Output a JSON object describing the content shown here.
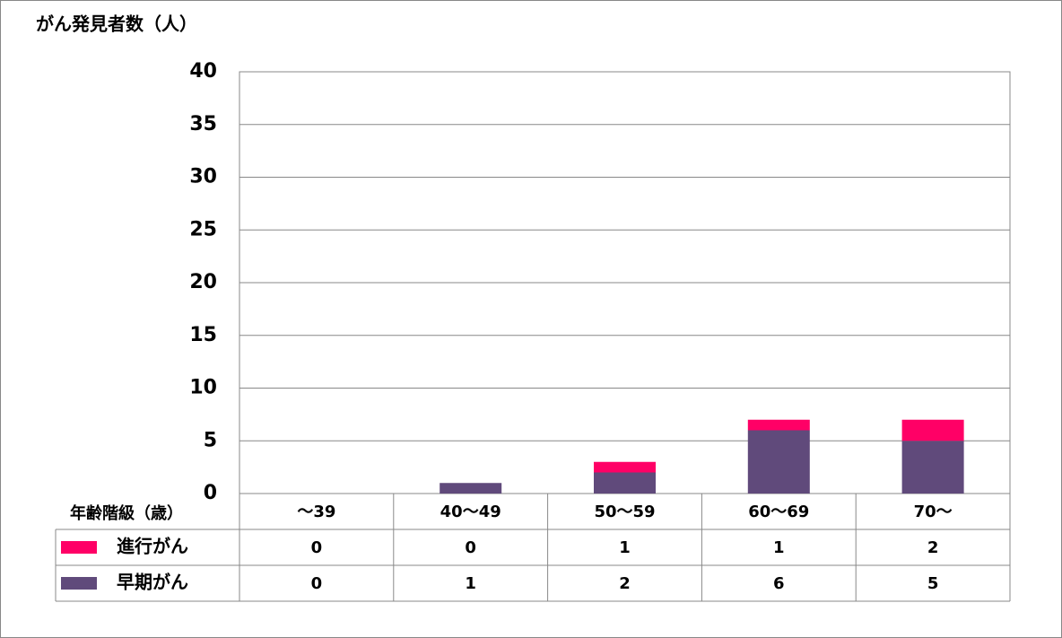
{
  "chart_data": {
    "type": "stacked-bar",
    "title": "がん発見者数（人）",
    "x_label": "年齢階級（歳）",
    "categories": [
      "～39",
      "40～49",
      "50～59",
      "60～69",
      "70～"
    ],
    "series": [
      {
        "name": "進行がん",
        "color": "#ff0066",
        "values": [
          0,
          0,
          1,
          1,
          2
        ]
      },
      {
        "name": "早期がん",
        "color": "#604a7b",
        "values": [
          0,
          1,
          2,
          6,
          5
        ]
      }
    ],
    "ylim": [
      0,
      40
    ],
    "yticks": [
      0,
      5,
      10,
      15,
      20,
      25,
      30,
      35,
      40
    ],
    "grid": true
  }
}
